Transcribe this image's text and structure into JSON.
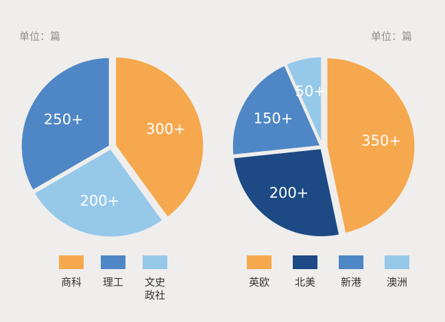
{
  "chart_data": [
    {
      "type": "pie",
      "unit_label": "单位：篇",
      "slices": [
        {
          "label": "商科",
          "value": 300,
          "value_label": "300+",
          "color": "#f6a84e"
        },
        {
          "label": "文史政社",
          "value": 200,
          "value_label": "200+",
          "color": "#96c8ea"
        },
        {
          "label": "理工",
          "value": 250,
          "value_label": "250+",
          "color": "#4f87c6"
        }
      ],
      "legend": [
        {
          "label": "商科",
          "color": "#f6a84e"
        },
        {
          "label": "理工",
          "color": "#4f87c6"
        },
        {
          "label": "文史政社",
          "color": "#96c8ea"
        }
      ],
      "legend_position": "bottom"
    },
    {
      "type": "pie",
      "unit_label": "单位：篇",
      "slices": [
        {
          "label": "英欧",
          "value": 350,
          "value_label": "350+",
          "color": "#f6a84e"
        },
        {
          "label": "北美",
          "value": 200,
          "value_label": "200+",
          "color": "#1d4a85"
        },
        {
          "label": "新港",
          "value": 150,
          "value_label": "150+",
          "color": "#4f87c6"
        },
        {
          "label": "澳洲",
          "value": 50,
          "value_label": "50+",
          "color": "#96c8ea"
        }
      ],
      "legend": [
        {
          "label": "英欧",
          "color": "#f6a84e"
        },
        {
          "label": "北美",
          "color": "#1d4a85"
        },
        {
          "label": "新港",
          "color": "#4f87c6"
        },
        {
          "label": "澳洲",
          "color": "#96c8ea"
        }
      ],
      "legend_position": "bottom"
    }
  ]
}
